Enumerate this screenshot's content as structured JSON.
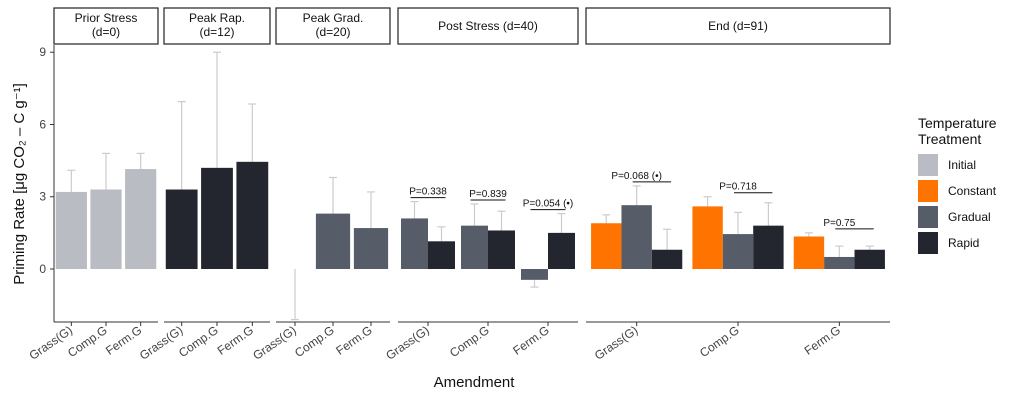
{
  "chart_data": {
    "type": "bar",
    "ylabel": "Priming Rate [μg CO₂ – C g⁻¹]",
    "xlabel": "Amendment",
    "ylim": [
      -2.2,
      9.3
    ],
    "y_ticks": [
      "0",
      "3",
      "6",
      "9"
    ],
    "legend": {
      "title": [
        "Temperature",
        "Treatment"
      ],
      "position": "right",
      "entries": [
        {
          "name": "Initial",
          "color": "#b9bcc3"
        },
        {
          "name": "Constant",
          "color": "#ff7400"
        },
        {
          "name": "Gradual",
          "color": "#575c69"
        },
        {
          "name": "Rapid",
          "color": "#23262e"
        }
      ]
    },
    "panels": [
      {
        "title": [
          "Prior Stress",
          "(d=0)"
        ],
        "categories": [
          "Grass(G)",
          "Comp.G",
          "Ferm.G"
        ],
        "series": [
          "Initial"
        ],
        "bars": [
          [
            {
              "treatment": "Initial",
              "value": 3.2,
              "err": 0.9
            }
          ],
          [
            {
              "treatment": "Initial",
              "value": 3.3,
              "err": 1.5
            }
          ],
          [
            {
              "treatment": "Initial",
              "value": 4.15,
              "err": 0.65
            }
          ]
        ],
        "pvalues": []
      },
      {
        "title": [
          "Peak Rap.",
          "(d=12)"
        ],
        "categories": [
          "Grass(G)",
          "Comp.G",
          "Ferm.G"
        ],
        "series": [
          "Rapid"
        ],
        "bars": [
          [
            {
              "treatment": "Rapid",
              "value": 3.3,
              "err": 3.65
            }
          ],
          [
            {
              "treatment": "Rapid",
              "value": 4.2,
              "err": 4.8
            }
          ],
          [
            {
              "treatment": "Rapid",
              "value": 4.45,
              "err": 2.4
            }
          ]
        ],
        "pvalues": []
      },
      {
        "title": [
          "Peak Grad.",
          "(d=20)"
        ],
        "categories": [
          "Grass(G)",
          "Comp.G",
          "Ferm.G"
        ],
        "series": [
          "Gradual"
        ],
        "bars": [
          [
            {
              "treatment": "Gradual",
              "value": 0.0,
              "err": 2.1
            }
          ],
          [
            {
              "treatment": "Gradual",
              "value": 2.3,
              "err": 1.5
            }
          ],
          [
            {
              "treatment": "Gradual",
              "value": 1.7,
              "err": 1.5
            }
          ]
        ],
        "pvalues": []
      },
      {
        "title": [
          "Post Stress (d=40)"
        ],
        "categories": [
          "Grass(G)",
          "Comp.G",
          "Ferm.G"
        ],
        "series": [
          "Gradual",
          "Rapid"
        ],
        "bars": [
          [
            {
              "treatment": "Gradual",
              "value": 2.1,
              "err": 0.7
            },
            {
              "treatment": "Rapid",
              "value": 1.15,
              "err": 0.6
            }
          ],
          [
            {
              "treatment": "Gradual",
              "value": 1.8,
              "err": 0.9
            },
            {
              "treatment": "Rapid",
              "value": 1.6,
              "err": 0.8
            }
          ],
          [
            {
              "treatment": "Gradual",
              "value": -0.45,
              "err": 0.3
            },
            {
              "treatment": "Rapid",
              "value": 1.5,
              "err": 0.8
            }
          ]
        ],
        "pvalues": [
          "P=0.338",
          "P=0.839",
          "P=0.054 (•)"
        ]
      },
      {
        "title": [
          "End (d=91)"
        ],
        "categories": [
          "Grass(G)",
          "Comp.G",
          "Ferm.G"
        ],
        "series": [
          "Constant",
          "Gradual",
          "Rapid"
        ],
        "bars": [
          [
            {
              "treatment": "Constant",
              "value": 1.9,
              "err": 0.35
            },
            {
              "treatment": "Gradual",
              "value": 2.65,
              "err": 0.8
            },
            {
              "treatment": "Rapid",
              "value": 0.8,
              "err": 0.85
            }
          ],
          [
            {
              "treatment": "Constant",
              "value": 2.6,
              "err": 0.4
            },
            {
              "treatment": "Gradual",
              "value": 1.45,
              "err": 0.9
            },
            {
              "treatment": "Rapid",
              "value": 1.8,
              "err": 0.95
            }
          ],
          [
            {
              "treatment": "Constant",
              "value": 1.35,
              "err": 0.15
            },
            {
              "treatment": "Gradual",
              "value": 0.5,
              "err": 0.45
            },
            {
              "treatment": "Rapid",
              "value": 0.8,
              "err": 0.15
            }
          ]
        ],
        "pvalues": [
          "P=0.068 (•)",
          "P=0.718",
          "P=0.75"
        ]
      }
    ]
  }
}
